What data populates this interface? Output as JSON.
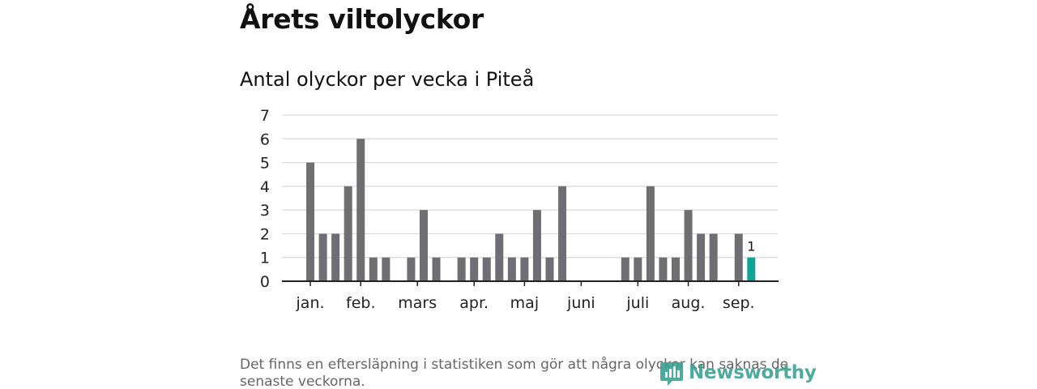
{
  "header": {
    "title": "Årets viltolyckor",
    "subtitle": "Antal olyckor per vecka i Piteå"
  },
  "footer": {
    "note": "Det finns en eftersläpning i statistiken som gör att några olyckor kan saknas de senaste veckorna.",
    "brand": "Newsworthy",
    "logo_icon": "newsworthy-logo-icon"
  },
  "colors": {
    "bar": "#6f6e73",
    "highlight": "#12a297",
    "grid": "#d9d9d9",
    "axis": "#222222",
    "brand": "#3aa394"
  },
  "chart_data": {
    "type": "bar",
    "title": "Antal olyckor per vecka i Piteå",
    "xlabel": "",
    "ylabel": "",
    "ylim": [
      0,
      7
    ],
    "yticks": [
      0,
      1,
      2,
      3,
      4,
      5,
      6,
      7
    ],
    "grid": true,
    "weeks": [
      1,
      2,
      3,
      4,
      5,
      6,
      7,
      8,
      9,
      10,
      11,
      12,
      13,
      14,
      15,
      16,
      17,
      18,
      19,
      20,
      21,
      22,
      23,
      24,
      25,
      26,
      27,
      28,
      29,
      30,
      31,
      32,
      33,
      34,
      35,
      36,
      37
    ],
    "values": [
      0,
      5,
      2,
      2,
      4,
      6,
      1,
      1,
      0,
      1,
      3,
      1,
      0,
      1,
      1,
      1,
      2,
      1,
      1,
      3,
      1,
      4,
      0,
      0,
      0,
      0,
      1,
      1,
      4,
      1,
      1,
      3,
      2,
      2,
      0,
      2,
      1
    ],
    "highlight_week": 37,
    "highlight_label": "1",
    "month_ticks": [
      {
        "label": "jan.",
        "week": 2
      },
      {
        "label": "feb.",
        "week": 6
      },
      {
        "label": "mars",
        "week": 10.5
      },
      {
        "label": "apr.",
        "week": 15
      },
      {
        "label": "maj",
        "week": 19
      },
      {
        "label": "juni",
        "week": 23.5
      },
      {
        "label": "juli",
        "week": 28
      },
      {
        "label": "aug.",
        "week": 32
      },
      {
        "label": "sep.",
        "week": 36
      }
    ]
  }
}
